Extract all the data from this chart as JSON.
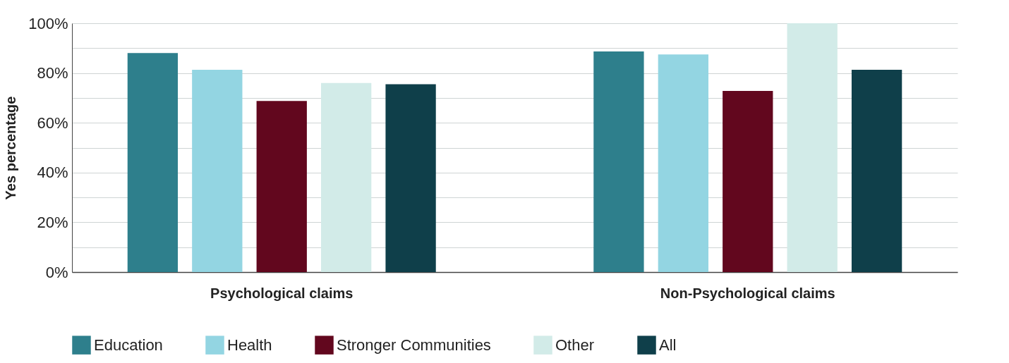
{
  "chart_data": {
    "type": "bar",
    "ylabel": "Yes percentage",
    "categories": [
      "Psychological claims",
      "Non-Psychological claims"
    ],
    "series": [
      {
        "name": "Education",
        "color": "#2e7f8c",
        "values": [
          88.0,
          88.7
        ]
      },
      {
        "name": "Health",
        "color": "#93d5e2",
        "values": [
          81.3,
          87.5
        ]
      },
      {
        "name": "Stronger Communities",
        "color": "#62071e",
        "values": [
          68.8,
          72.8
        ]
      },
      {
        "name": "Other",
        "color": "#d2ebe8",
        "values": [
          76.0,
          100
        ]
      },
      {
        "name": "All",
        "color": "#0f3f4a",
        "values": [
          75.5,
          81.3
        ]
      }
    ],
    "ylim": [
      0,
      100
    ],
    "yticks": [
      {
        "value": 0,
        "label": "0%"
      },
      {
        "value": 10,
        "label": null
      },
      {
        "value": 20,
        "label": "20%"
      },
      {
        "value": 30,
        "label": null
      },
      {
        "value": 40,
        "label": "40%"
      },
      {
        "value": 50,
        "label": null
      },
      {
        "value": 60,
        "label": "60%"
      },
      {
        "value": 70,
        "label": null
      },
      {
        "value": 80,
        "label": "80%"
      },
      {
        "value": 90,
        "label": null
      },
      {
        "value": 100,
        "label": "100%"
      }
    ],
    "grid": "y",
    "legend": "bottom"
  }
}
